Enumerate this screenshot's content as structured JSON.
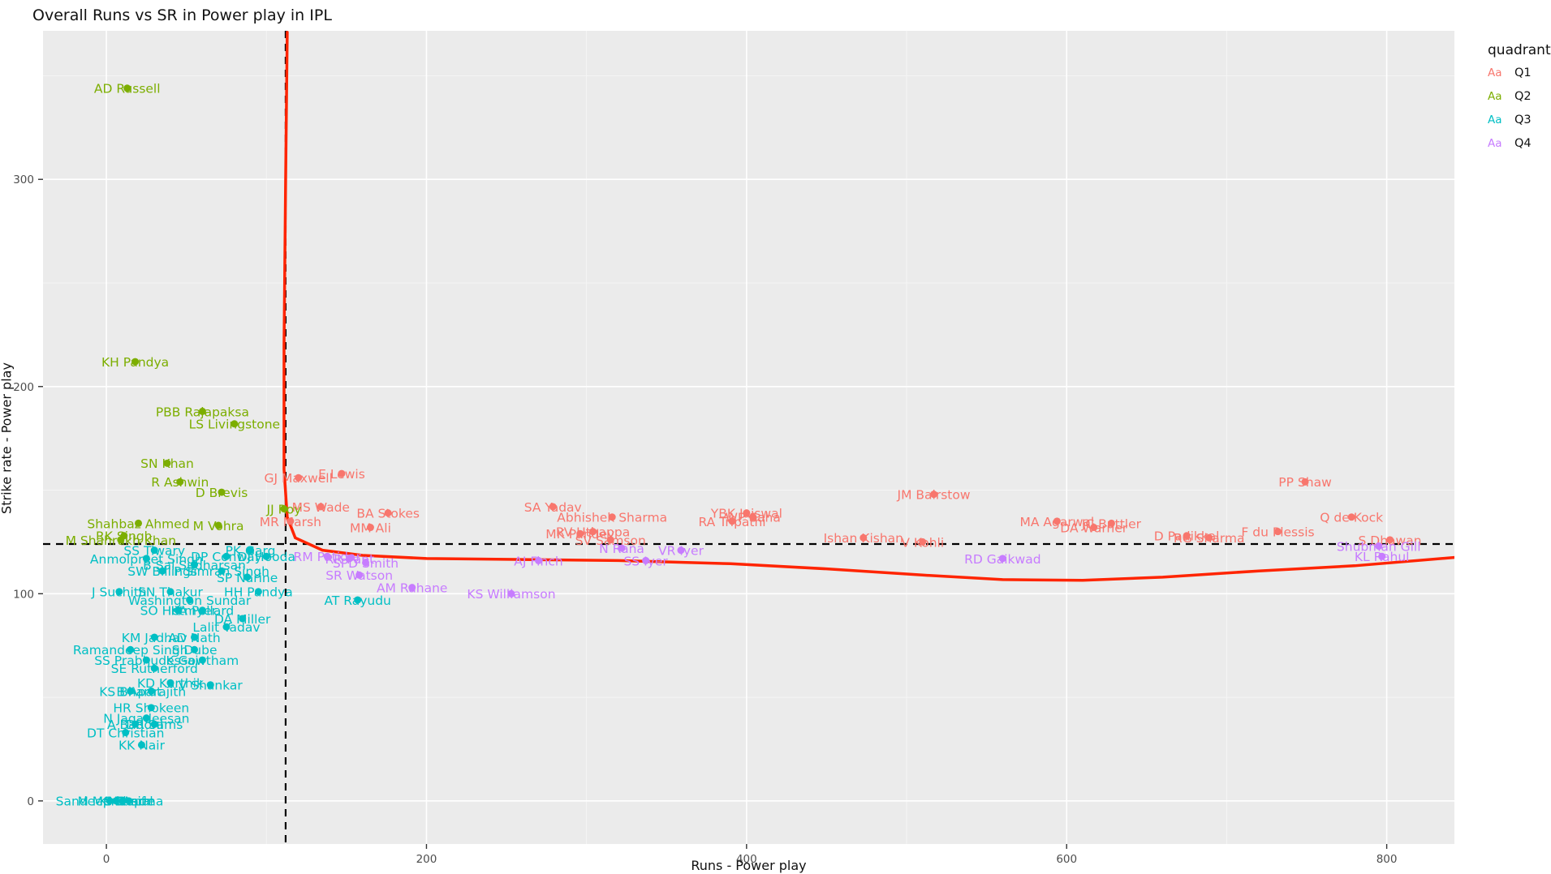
{
  "title": "Overall Runs vs SR in Power play in IPL",
  "legend": {
    "title": "quadrant",
    "key_text": "Aa",
    "items": [
      {
        "label": "Q1",
        "color": "#F8766D"
      },
      {
        "label": "Q2",
        "color": "#7CAE00"
      },
      {
        "label": "Q3",
        "color": "#00BFC4"
      },
      {
        "label": "Q4",
        "color": "#C77CFF"
      }
    ]
  },
  "colors": {
    "Q1": "#F8766D",
    "Q2": "#7CAE00",
    "Q3": "#00BFC4",
    "Q4": "#C77CFF",
    "panel_background": "#EBEBEB",
    "grid_major": "#FFFFFF",
    "grid_minor": "#F5F5F5",
    "trend_line": "#FF2400",
    "dashed_line": "#000000",
    "tick_text": "#4D4D4D",
    "tick_mark": "#333333"
  },
  "chart_data": {
    "type": "scatter",
    "title": "Overall Runs vs SR in Power play in IPL",
    "xlabel": "Runs - Power play",
    "ylabel": "Strike rate - Power play",
    "xlim": [
      -39.6,
      842.3
    ],
    "ylim": [
      -20.8,
      371.7
    ],
    "x_ticks": [
      0,
      200,
      400,
      600,
      800
    ],
    "y_ticks": [
      0,
      100,
      200,
      300
    ],
    "x_minor_ticks": [
      100,
      300,
      500,
      700
    ],
    "y_minor_ticks": [
      50,
      150,
      250,
      350
    ],
    "grid": true,
    "legend_position": "right",
    "vline_x": 112,
    "hline_y": 124,
    "series": [
      {
        "name": "Q1",
        "points": [
          {
            "label": "E Lewis",
            "x": 147,
            "y": 158
          },
          {
            "label": "GJ Maxwell",
            "x": 120,
            "y": 156
          },
          {
            "label": "MS Wade",
            "x": 134,
            "y": 142
          },
          {
            "label": "BA Stokes",
            "x": 176,
            "y": 139
          },
          {
            "label": "MR Marsh",
            "x": 115,
            "y": 135
          },
          {
            "label": "MM Ali",
            "x": 165,
            "y": 132
          },
          {
            "label": "SA Yadav",
            "x": 279,
            "y": 142
          },
          {
            "label": "Abhishek Sharma",
            "x": 316,
            "y": 137
          },
          {
            "label": "YBK Jaiswal",
            "x": 400,
            "y": 139
          },
          {
            "label": "WP Saha",
            "x": 404,
            "y": 137
          },
          {
            "label": "RA Tripathi",
            "x": 391,
            "y": 135
          },
          {
            "label": "RV Uthappa",
            "x": 304,
            "y": 130
          },
          {
            "label": "MK Pandey",
            "x": 296,
            "y": 129
          },
          {
            "label": "SV Samson",
            "x": 315,
            "y": 126
          },
          {
            "label": "JM Bairstow",
            "x": 517,
            "y": 148
          },
          {
            "label": "Ishan Kishan",
            "x": 473,
            "y": 127
          },
          {
            "label": "V Kohli",
            "x": 510,
            "y": 125
          },
          {
            "label": "MA Agarwal",
            "x": 594,
            "y": 135
          },
          {
            "label": "JC Buttler",
            "x": 628,
            "y": 134
          },
          {
            "label": "DA Warner",
            "x": 617,
            "y": 132
          },
          {
            "label": "D Padikkal",
            "x": 675,
            "y": 128
          },
          {
            "label": "RG Sharma",
            "x": 689,
            "y": 127
          },
          {
            "label": "F du Plessis",
            "x": 732,
            "y": 130
          },
          {
            "label": "Q de Kock",
            "x": 778,
            "y": 137
          },
          {
            "label": "PP Shaw",
            "x": 749,
            "y": 154
          },
          {
            "label": "S Dhawan",
            "x": 802,
            "y": 126
          }
        ]
      },
      {
        "name": "Q2",
        "points": [
          {
            "label": "AD Russell",
            "x": 13,
            "y": 344
          },
          {
            "label": "KH Pandya",
            "x": 18,
            "y": 212
          },
          {
            "label": "PBB Rajapaksa",
            "x": 60,
            "y": 188
          },
          {
            "label": "LS Livingstone",
            "x": 80,
            "y": 182
          },
          {
            "label": "SN Khan",
            "x": 38,
            "y": 163
          },
          {
            "label": "R Ashwin",
            "x": 46,
            "y": 154
          },
          {
            "label": "D Brevis",
            "x": 72,
            "y": 149
          },
          {
            "label": "JJ Roy",
            "x": 111,
            "y": 141
          },
          {
            "label": "Shahbaz Ahmed",
            "x": 20,
            "y": 134
          },
          {
            "label": "M Vohra",
            "x": 70,
            "y": 133
          },
          {
            "label": "RK Singh",
            "x": 11,
            "y": 128
          },
          {
            "label": "M Shahrukh Khan",
            "x": 9,
            "y": 126
          }
        ]
      },
      {
        "name": "Q3",
        "points": [
          {
            "label": "SS Tiwary",
            "x": 30,
            "y": 121
          },
          {
            "label": "PK Garg",
            "x": 90,
            "y": 121
          },
          {
            "label": "DP Conway",
            "x": 75,
            "y": 118
          },
          {
            "label": "DJ Hooda",
            "x": 100,
            "y": 118
          },
          {
            "label": "Anmolpreet Singh",
            "x": 25,
            "y": 117
          },
          {
            "label": "B Sai Sudharsan",
            "x": 55,
            "y": 114
          },
          {
            "label": "SW Billings",
            "x": 35,
            "y": 111
          },
          {
            "label": "P Simran Singh",
            "x": 72,
            "y": 111
          },
          {
            "label": "SP Narine",
            "x": 88,
            "y": 108
          },
          {
            "label": "J Suchith",
            "x": 8,
            "y": 101
          },
          {
            "label": "SN Thakur",
            "x": 40,
            "y": 101
          },
          {
            "label": "HH Pandya",
            "x": 95,
            "y": 101
          },
          {
            "label": "Washington Sundar",
            "x": 52,
            "y": 97
          },
          {
            "label": "AT Rayudu",
            "x": 157,
            "y": 97
          },
          {
            "label": "SO Hetmyer",
            "x": 45,
            "y": 92
          },
          {
            "label": "KA Pollard",
            "x": 60,
            "y": 92
          },
          {
            "label": "DA Miller",
            "x": 85,
            "y": 88
          },
          {
            "label": "Lalit Yadav",
            "x": 75,
            "y": 84
          },
          {
            "label": "KM Jadhav",
            "x": 30,
            "y": 79
          },
          {
            "label": "AD Nath",
            "x": 55,
            "y": 79
          },
          {
            "label": "Ramandeep Singh",
            "x": 15,
            "y": 73
          },
          {
            "label": "S Dube",
            "x": 55,
            "y": 73
          },
          {
            "label": "SS Prabhudessai",
            "x": 25,
            "y": 68
          },
          {
            "label": "K Gowtham",
            "x": 60,
            "y": 68
          },
          {
            "label": "SE Rutherford",
            "x": 30,
            "y": 64
          },
          {
            "label": "KD Karthik",
            "x": 40,
            "y": 57
          },
          {
            "label": "V Shankar",
            "x": 65,
            "y": 56
          },
          {
            "label": "KS Bharat",
            "x": 15,
            "y": 53
          },
          {
            "label": "B Aparajith",
            "x": 28,
            "y": 53
          },
          {
            "label": "HR Shokeen",
            "x": 28,
            "y": 45
          },
          {
            "label": "N Jagadeesan",
            "x": 25,
            "y": 40
          },
          {
            "label": "A Badoni",
            "x": 18,
            "y": 37
          },
          {
            "label": "DR Sams",
            "x": 30,
            "y": 37
          },
          {
            "label": "DT Christian",
            "x": 12,
            "y": 33
          },
          {
            "label": "KK Nair",
            "x": 22,
            "y": 27
          },
          {
            "label": "Sandeep Sharma",
            "x": 2,
            "y": 0
          },
          {
            "label": "M Markande",
            "x": 6,
            "y": 0
          },
          {
            "label": "KM Asif",
            "x": 10,
            "y": 0
          },
          {
            "label": "S Gopal",
            "x": 14,
            "y": 0
          }
        ]
      },
      {
        "name": "Q4",
        "points": [
          {
            "label": "RM Patidar",
            "x": 138,
            "y": 118
          },
          {
            "label": "RR Pant",
            "x": 152,
            "y": 117
          },
          {
            "label": "SPD Smith",
            "x": 162,
            "y": 115
          },
          {
            "label": "SR Watson",
            "x": 158,
            "y": 109
          },
          {
            "label": "AM Rahane",
            "x": 191,
            "y": 103
          },
          {
            "label": "N Rana",
            "x": 322,
            "y": 122
          },
          {
            "label": "VR Iyer",
            "x": 359,
            "y": 121
          },
          {
            "label": "AJ Finch",
            "x": 270,
            "y": 116
          },
          {
            "label": "SS Iyer",
            "x": 337,
            "y": 116
          },
          {
            "label": "KS Williamson",
            "x": 253,
            "y": 100
          },
          {
            "label": "RD Gaikwad",
            "x": 560,
            "y": 117
          },
          {
            "label": "Shubman Gill",
            "x": 795,
            "y": 123
          },
          {
            "label": "KL Rahul",
            "x": 797,
            "y": 118
          }
        ]
      }
    ],
    "trend_line_points": [
      {
        "x": 113,
        "y": 371
      },
      {
        "x": 112,
        "y": 300
      },
      {
        "x": 111,
        "y": 220
      },
      {
        "x": 111,
        "y": 160
      },
      {
        "x": 113,
        "y": 137
      },
      {
        "x": 118,
        "y": 127
      },
      {
        "x": 135,
        "y": 121
      },
      {
        "x": 160,
        "y": 118.5
      },
      {
        "x": 200,
        "y": 117
      },
      {
        "x": 260,
        "y": 116.5
      },
      {
        "x": 320,
        "y": 116
      },
      {
        "x": 390,
        "y": 114.5
      },
      {
        "x": 450,
        "y": 112
      },
      {
        "x": 510,
        "y": 109
      },
      {
        "x": 560,
        "y": 106.8
      },
      {
        "x": 610,
        "y": 106.5
      },
      {
        "x": 660,
        "y": 108
      },
      {
        "x": 720,
        "y": 111
      },
      {
        "x": 780,
        "y": 113.5
      },
      {
        "x": 842,
        "y": 117.5
      }
    ]
  }
}
